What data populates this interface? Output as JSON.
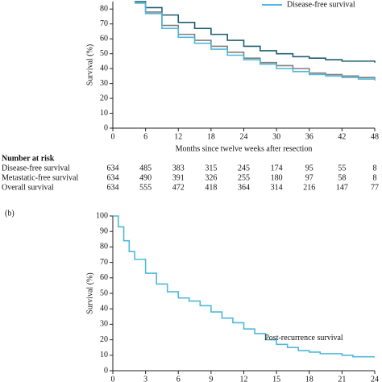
{
  "chart_data": [
    {
      "type": "line",
      "y_label": "Survival (%)",
      "x_label": "Months since twelve weeks after resection",
      "xlim": [
        0,
        48
      ],
      "xticks": [
        0,
        6,
        12,
        18,
        24,
        30,
        36,
        42,
        48
      ],
      "ylim": [
        0,
        85
      ],
      "yticks": [
        0,
        10,
        20,
        30,
        40,
        50,
        60,
        70,
        80
      ],
      "legend": "top-right",
      "step": true,
      "series": [
        {
          "color": "#1f5f73",
          "x": [
            4,
            6,
            9,
            12,
            15,
            18,
            21,
            24,
            27,
            30,
            33,
            36,
            39,
            42,
            45,
            48
          ],
          "values": [
            85,
            81,
            76,
            71,
            67,
            63,
            59,
            55,
            52,
            50,
            48,
            47,
            46,
            45,
            45,
            44
          ]
        },
        {
          "color": "#7f7f7f",
          "x": [
            4,
            6,
            9,
            12,
            15,
            18,
            21,
            24,
            27,
            30,
            33,
            36,
            39,
            42,
            45,
            48
          ],
          "values": [
            84,
            78,
            69,
            63,
            59,
            55,
            51,
            47,
            44,
            42,
            40,
            37,
            36,
            35,
            34,
            33
          ]
        },
        {
          "name": "Disease-free survival",
          "color": "#4fb8d8",
          "x": [
            4,
            6,
            9,
            12,
            15,
            18,
            21,
            24,
            27,
            30,
            33,
            36,
            39,
            42,
            45,
            48
          ],
          "values": [
            84,
            77,
            67,
            61,
            57,
            53,
            49,
            46,
            43,
            40,
            38,
            36,
            35,
            34,
            33,
            32
          ]
        }
      ],
      "risk_table": {
        "title": "Number at risk",
        "rows": [
          {
            "name": "Disease-free survival",
            "values": [
              634,
              485,
              383,
              315,
              245,
              174,
              95,
              55,
              8
            ]
          },
          {
            "name": "Metastatic-free survival",
            "values": [
              634,
              490,
              391,
              326,
              255,
              180,
              97,
              58,
              8
            ]
          },
          {
            "name": "Overall survival",
            "values": [
              634,
              555,
              472,
              418,
              364,
              314,
              216,
              147,
              77
            ]
          }
        ]
      }
    },
    {
      "type": "line",
      "panel_label": "(b)",
      "y_label": "Survival (%)",
      "step": true,
      "xlim": [
        0,
        24
      ],
      "xticks": [
        0,
        3,
        6,
        9,
        12,
        15,
        18,
        21,
        24
      ],
      "ylim": [
        0,
        100
      ],
      "yticks": [
        0,
        10,
        20,
        30,
        40,
        50,
        60,
        70,
        80,
        90,
        100
      ],
      "annotation": "Post-recurrence survival",
      "annotation_xy": [
        17.5,
        21
      ],
      "series": [
        {
          "color": "#4fb8d8",
          "x": [
            0,
            0.5,
            1,
            1.5,
            2,
            3,
            4,
            5,
            6,
            7,
            8,
            9,
            10,
            11,
            12,
            13,
            14,
            15,
            16,
            17,
            18,
            19,
            20,
            21,
            22,
            23,
            24
          ],
          "values": [
            100,
            93,
            84,
            77,
            72,
            63,
            56,
            51,
            47,
            45,
            42,
            38,
            34,
            31,
            27,
            24,
            20,
            17,
            15,
            13,
            12,
            11,
            11,
            10,
            9,
            9,
            9
          ]
        }
      ]
    }
  ]
}
